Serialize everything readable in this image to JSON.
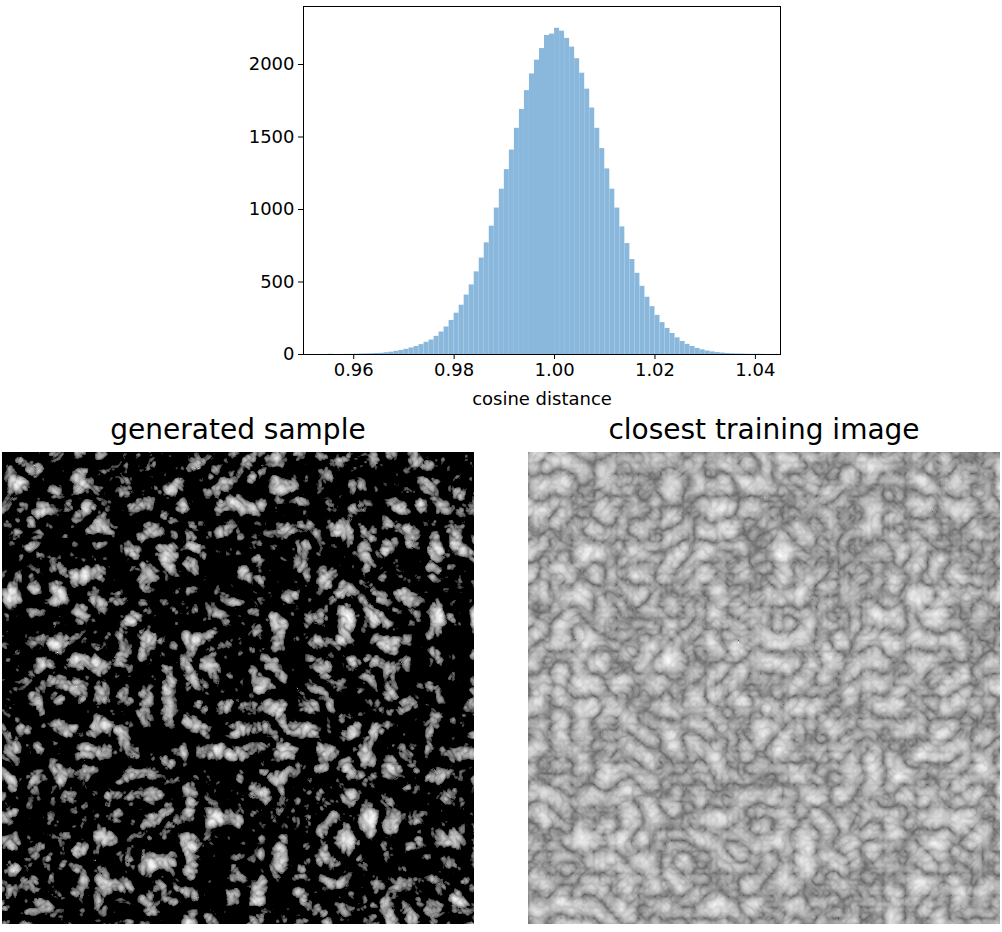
{
  "chart_data": {
    "type": "histogram",
    "xlabel": "cosine distance",
    "bins": [
      0.955,
      0.956,
      0.957,
      0.958,
      0.959,
      0.96,
      0.961,
      0.962,
      0.963,
      0.964,
      0.965,
      0.966,
      0.967,
      0.968,
      0.969,
      0.97,
      0.971,
      0.972,
      0.973,
      0.974,
      0.975,
      0.976,
      0.977,
      0.978,
      0.979,
      0.98,
      0.981,
      0.982,
      0.983,
      0.984,
      0.985,
      0.986,
      0.987,
      0.988,
      0.989,
      0.99,
      0.991,
      0.992,
      0.993,
      0.994,
      0.995,
      0.996,
      0.997,
      0.998,
      0.999,
      1.0,
      1.001,
      1.002,
      1.003,
      1.004,
      1.005,
      1.006,
      1.007,
      1.008,
      1.009,
      1.01,
      1.011,
      1.012,
      1.013,
      1.014,
      1.015,
      1.016,
      1.017,
      1.018,
      1.019,
      1.02,
      1.021,
      1.022,
      1.023,
      1.024,
      1.025,
      1.026,
      1.027,
      1.028,
      1.029,
      1.03,
      1.031,
      1.032,
      1.033,
      1.034,
      1.035,
      1.036,
      1.037,
      1.038,
      1.039,
      1.04,
      1.041,
      1.042,
      1.043,
      1.044,
      1.045
    ],
    "values": [
      2,
      0,
      0,
      1,
      1,
      2,
      3,
      4,
      5,
      7,
      8,
      12,
      16,
      22,
      28,
      36,
      45,
      55,
      68,
      84,
      100,
      125,
      155,
      190,
      235,
      285,
      340,
      410,
      480,
      570,
      665,
      770,
      885,
      1010,
      1140,
      1275,
      1410,
      1560,
      1690,
      1820,
      1935,
      2030,
      2110,
      2200,
      2210,
      2250,
      2230,
      2180,
      2120,
      2040,
      1940,
      1830,
      1700,
      1560,
      1420,
      1280,
      1140,
      1010,
      880,
      765,
      655,
      560,
      470,
      395,
      330,
      270,
      220,
      180,
      145,
      115,
      90,
      70,
      55,
      42,
      32,
      24,
      18,
      13,
      10,
      7,
      5,
      4,
      3,
      2,
      1,
      2,
      1,
      0,
      0,
      1
    ],
    "color": "#8ab8dc",
    "xlim": [
      0.95,
      1.045
    ],
    "xticks": [
      0.96,
      0.98,
      {
        "value": 1,
        "label": "1.00"
      },
      1.02,
      1.04
    ],
    "ylim": [
      0,
      2400
    ],
    "yticks": [
      0,
      500,
      1000,
      1500,
      2000
    ],
    "grid": false
  },
  "images": [
    {
      "title": "generated sample"
    },
    {
      "title": "closest training image"
    }
  ]
}
